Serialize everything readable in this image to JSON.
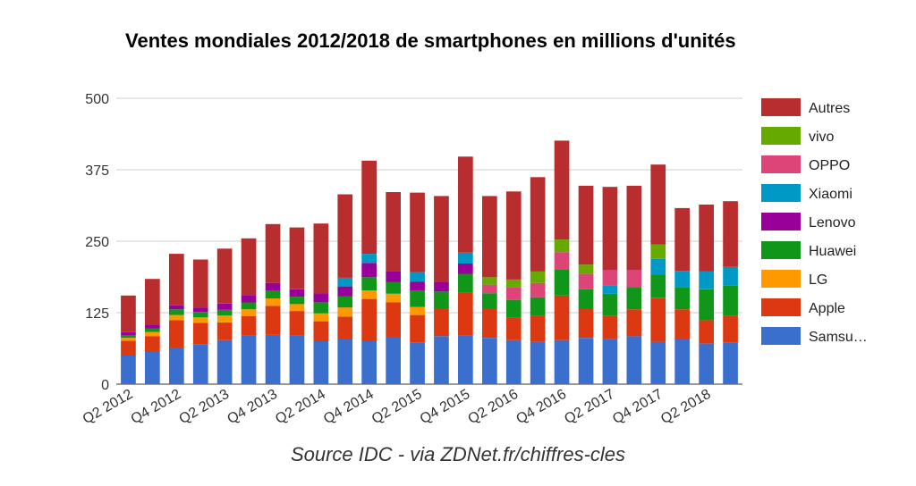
{
  "chart_data": {
    "type": "bar",
    "stacked": true,
    "title": "Ventes mondiales 2012/2018 de smartphones en millions d'unités",
    "source": "Source IDC - via ZDNet.fr/chiffres-cles",
    "ylim": [
      0,
      500
    ],
    "yticks": [
      0,
      125,
      250,
      375,
      500
    ],
    "grid": true,
    "legend_position": "right",
    "categories": [
      "Q2 2012",
      "Q3 2012",
      "Q4 2012",
      "Q1 2013",
      "Q2 2013",
      "Q3 2013",
      "Q4 2013",
      "Q1 2014",
      "Q2 2014",
      "Q3 2014",
      "Q4 2014",
      "Q1 2015",
      "Q2 2015",
      "Q3 2015",
      "Q4 2015",
      "Q1 2016",
      "Q2 2016",
      "Q3 2016",
      "Q4 2016",
      "Q1 2017",
      "Q2 2017",
      "Q3 2017",
      "Q4 2017",
      "Q1 2018",
      "Q2 2018",
      "Q3 2018"
    ],
    "xtick_labels": [
      "Q2 2012",
      "",
      "Q4 2012",
      "",
      "Q2 2013",
      "",
      "Q4 2013",
      "",
      "Q2 2014",
      "",
      "Q4 2014",
      "",
      "Q2 2015",
      "",
      "Q4 2015",
      "",
      "Q2 2016",
      "",
      "Q4 2016",
      "",
      "Q2 2017",
      "",
      "Q4 2017",
      "",
      "Q2 2018",
      ""
    ],
    "series": [
      {
        "name": "Samsu…",
        "color": "#3a6fcd",
        "values": [
          50,
          57,
          64,
          70,
          77,
          85,
          86,
          85,
          75,
          79,
          75,
          82,
          73,
          84,
          85,
          81,
          77,
          74,
          77,
          81,
          79,
          84,
          74,
          79,
          71,
          73
        ]
      },
      {
        "name": "Apple",
        "color": "#dc3912",
        "values": [
          26,
          27,
          48,
          37,
          31,
          34,
          51,
          43,
          35,
          39,
          74,
          61,
          48,
          48,
          75,
          51,
          40,
          45,
          78,
          51,
          41,
          47,
          77,
          52,
          41,
          47
        ]
      },
      {
        "name": "LG",
        "color": "#ff9900",
        "values": [
          5,
          7,
          9,
          10,
          12,
          12,
          13,
          12,
          14,
          16,
          15,
          15,
          14,
          0,
          0,
          0,
          0,
          0,
          0,
          0,
          0,
          0,
          0,
          0,
          0,
          0
        ]
      },
      {
        "name": "Huawei",
        "color": "#109618",
        "values": [
          5,
          6,
          10,
          9,
          10,
          12,
          14,
          13,
          19,
          20,
          23,
          21,
          28,
          30,
          33,
          27,
          30,
          33,
          45,
          34,
          38,
          39,
          41,
          39,
          54,
          52
        ]
      },
      {
        "name": "Lenovo",
        "color": "#990099",
        "values": [
          5,
          7,
          7,
          8,
          11,
          13,
          13,
          13,
          16,
          17,
          25,
          19,
          16,
          17,
          18,
          0,
          0,
          0,
          0,
          0,
          0,
          0,
          0,
          0,
          0,
          0
        ]
      },
      {
        "name": "Xiaomi",
        "color": "#0099c6",
        "values": [
          0,
          0,
          0,
          0,
          0,
          0,
          0,
          0,
          0,
          15,
          16,
          0,
          17,
          0,
          19,
          0,
          0,
          0,
          0,
          0,
          14,
          0,
          27,
          28,
          31,
          33
        ]
      },
      {
        "name": "OPPO",
        "color": "#dd4477",
        "values": [
          0,
          0,
          0,
          0,
          0,
          0,
          0,
          0,
          0,
          0,
          0,
          0,
          0,
          0,
          0,
          15,
          23,
          25,
          31,
          27,
          28,
          30,
          0,
          0,
          0,
          0
        ]
      },
      {
        "name": "vivo",
        "color": "#66aa00",
        "values": [
          0,
          0,
          0,
          0,
          0,
          0,
          0,
          0,
          0,
          0,
          0,
          0,
          0,
          0,
          0,
          13,
          13,
          20,
          22,
          16,
          0,
          0,
          25,
          0,
          0,
          0
        ]
      },
      {
        "name": "Autres",
        "color": "#b82e2e",
        "values": [
          64,
          80,
          90,
          84,
          96,
          99,
          103,
          108,
          122,
          146,
          163,
          138,
          139,
          150,
          168,
          142,
          154,
          165,
          173,
          138,
          145,
          147,
          140,
          110,
          117,
          115
        ]
      }
    ]
  },
  "colors": {
    "grid": "#cccccc",
    "baseline": "#333333"
  }
}
